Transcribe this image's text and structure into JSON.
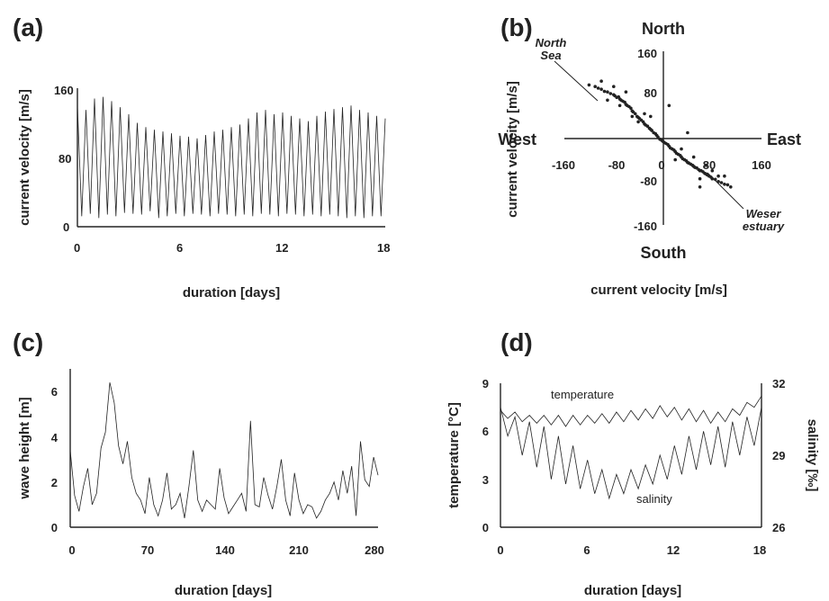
{
  "chart_data": [
    {
      "id": "a",
      "panel_label": "(a)",
      "type": "line",
      "xlabel": "duration [days]",
      "ylabel": "current velocity [m/s]",
      "xlim": [
        0,
        18
      ],
      "ylim": [
        0,
        160
      ],
      "xticks": [
        "0",
        "6",
        "12",
        "18"
      ],
      "yticks": [
        "0",
        "80",
        "160"
      ],
      "series": [
        {
          "x": [
            0.0,
            0.25,
            0.5,
            0.75,
            1.0,
            1.25,
            1.5,
            1.75,
            2.0,
            2.25,
            2.5,
            2.75,
            3.0,
            3.25,
            3.5,
            3.75,
            4.0,
            4.25,
            4.5,
            4.75,
            5.0,
            5.25,
            5.5,
            5.75,
            6.0,
            6.25,
            6.5,
            6.75,
            7.0,
            7.25,
            7.5,
            7.75,
            8.0,
            8.25,
            8.5,
            8.75,
            9.0,
            9.25,
            9.5,
            9.75,
            10.0,
            10.25,
            10.5,
            10.75,
            11.0,
            11.25,
            11.5,
            11.75,
            12.0,
            12.25,
            12.5,
            12.75,
            13.0,
            13.25,
            13.5,
            13.75,
            14.0,
            14.25,
            14.5,
            14.75,
            15.0,
            15.25,
            15.5,
            15.75,
            16.0,
            16.25,
            16.5,
            16.75,
            17.0,
            17.25,
            17.5,
            17.75,
            18.0
          ],
          "values": [
            140,
            12,
            135,
            15,
            148,
            10,
            150,
            14,
            145,
            12,
            138,
            16,
            130,
            15,
            120,
            14,
            115,
            18,
            112,
            10,
            110,
            12,
            108,
            15,
            105,
            12,
            104,
            15,
            102,
            14,
            106,
            12,
            110,
            15,
            112,
            14,
            115,
            12,
            118,
            14,
            125,
            12,
            132,
            15,
            135,
            14,
            130,
            12,
            132,
            15,
            128,
            14,
            125,
            12,
            122,
            14,
            128,
            12,
            133,
            14,
            136,
            12,
            138,
            10,
            140,
            12,
            135,
            10,
            132,
            12,
            128,
            12,
            125
          ]
        }
      ]
    },
    {
      "id": "b",
      "panel_label": "(b)",
      "type": "scatter",
      "xlabel": "current velocity [m/s]",
      "ylabel": "current velocity [m/s]",
      "xlim": [
        -160,
        160
      ],
      "ylim": [
        -160,
        160
      ],
      "xticks": [
        "-160",
        "-80",
        "0",
        "80",
        "160"
      ],
      "yticks": [
        "-160",
        "-80",
        "0",
        "80",
        "160"
      ],
      "compass": {
        "north": "North",
        "south": "South",
        "east": "East",
        "west": "West"
      },
      "annotations": [
        {
          "line1": "North",
          "line2": "Sea"
        },
        {
          "line1": "Weser",
          "line2": "estuary"
        }
      ],
      "series": [
        {
          "x": [
            -120,
            -110,
            -105,
            -100,
            -95,
            -90,
            -85,
            -80,
            -78,
            -75,
            -72,
            -70,
            -68,
            -65,
            -62,
            -60,
            -58,
            -55,
            -52,
            -50,
            -48,
            -45,
            -42,
            -40,
            -38,
            -35,
            -32,
            -30,
            -28,
            -25,
            -22,
            -20,
            -18,
            -15,
            -12,
            -10,
            -8,
            -5,
            -2,
            0,
            2,
            5,
            8,
            10,
            12,
            15,
            18,
            20,
            22,
            25,
            28,
            30,
            32,
            35,
            38,
            40,
            42,
            45,
            48,
            50,
            52,
            55,
            58,
            60,
            62,
            65,
            68,
            70,
            72,
            75,
            78,
            80,
            85,
            90,
            95,
            100,
            105,
            110,
            -90,
            -60,
            -30,
            20,
            50,
            80,
            -100,
            -70,
            -40,
            30,
            60,
            90,
            40,
            -50,
            100,
            -20,
            70,
            -80,
            10,
            60
          ],
          "values": [
            98,
            95,
            92,
            90,
            86,
            85,
            82,
            80,
            78,
            75,
            76,
            72,
            70,
            68,
            66,
            62,
            60,
            58,
            55,
            50,
            48,
            45,
            40,
            38,
            36,
            33,
            30,
            26,
            24,
            22,
            18,
            16,
            14,
            10,
            8,
            5,
            2,
            -2,
            -4,
            -6,
            -8,
            -10,
            -12,
            -15,
            -18,
            -20,
            -22,
            -25,
            -28,
            -30,
            -32,
            -35,
            -38,
            -40,
            -42,
            -45,
            -46,
            -48,
            -50,
            -52,
            -54,
            -55,
            -58,
            -60,
            -60,
            -62,
            -65,
            -66,
            -68,
            -70,
            -72,
            -75,
            -76,
            -80,
            -82,
            -85,
            -86,
            -90,
            70,
            85,
            45,
            -40,
            -35,
            -60,
            105,
            60,
            30,
            -20,
            -75,
            -70,
            10,
            40,
            -70,
            40,
            -50,
            95,
            60,
            -90
          ]
        }
      ]
    },
    {
      "id": "c",
      "panel_label": "(c)",
      "type": "line",
      "xlabel": "duration [days]",
      "ylabel": "wave height [m]",
      "xlim": [
        0,
        280
      ],
      "ylim": [
        0,
        7
      ],
      "xticks": [
        "0",
        "70",
        "140",
        "210",
        "280"
      ],
      "yticks": [
        "0",
        "2",
        "4",
        "6"
      ],
      "series": [
        {
          "x": [
            0,
            4,
            8,
            12,
            16,
            20,
            24,
            28,
            32,
            36,
            40,
            44,
            48,
            52,
            56,
            60,
            64,
            68,
            72,
            76,
            80,
            84,
            88,
            92,
            96,
            100,
            104,
            108,
            112,
            116,
            120,
            124,
            128,
            132,
            136,
            140,
            144,
            148,
            152,
            156,
            160,
            164,
            168,
            172,
            176,
            180,
            184,
            188,
            192,
            196,
            200,
            204,
            208,
            212,
            216,
            220,
            224,
            228,
            232,
            236,
            240,
            244,
            248,
            252,
            256,
            260,
            264,
            268,
            272,
            276,
            280
          ],
          "values": [
            3.4,
            1.4,
            0.7,
            1.8,
            2.6,
            1.0,
            1.5,
            3.5,
            4.2,
            6.4,
            5.5,
            3.6,
            2.8,
            3.8,
            2.2,
            1.5,
            1.2,
            0.6,
            2.2,
            1.0,
            0.5,
            1.2,
            2.4,
            0.8,
            1.0,
            1.5,
            0.4,
            1.8,
            3.4,
            1.2,
            0.7,
            1.2,
            1.0,
            0.8,
            2.6,
            1.3,
            0.6,
            0.9,
            1.2,
            1.5,
            0.7,
            4.7,
            1.0,
            0.9,
            2.2,
            1.4,
            0.8,
            1.8,
            3.0,
            1.2,
            0.5,
            2.4,
            1.2,
            0.6,
            1.0,
            0.9,
            0.4,
            0.7,
            1.2,
            1.5,
            2.0,
            1.2,
            2.5,
            1.5,
            2.7,
            0.5,
            3.8,
            2.1,
            1.8,
            3.1,
            2.3
          ]
        }
      ]
    },
    {
      "id": "d",
      "panel_label": "(d)",
      "type": "line",
      "xlabel": "duration [days]",
      "ylabel": "temperature [°C]",
      "ylabel_right": "salinity [‰]",
      "xlim": [
        0,
        18
      ],
      "ylim": [
        0,
        9
      ],
      "ylim_right": [
        26,
        32
      ],
      "xticks": [
        "0",
        "6",
        "12",
        "18"
      ],
      "yticks": [
        "0",
        "3",
        "6",
        "9"
      ],
      "yticks_right": [
        "26",
        "29",
        "32"
      ],
      "series": [
        {
          "name": "temperature",
          "x": [
            0.0,
            0.5,
            1.0,
            1.5,
            2.0,
            2.5,
            3.0,
            3.5,
            4.0,
            4.5,
            5.0,
            5.5,
            6.0,
            6.5,
            7.0,
            7.5,
            8.0,
            8.5,
            9.0,
            9.5,
            10.0,
            10.5,
            11.0,
            11.5,
            12.0,
            12.5,
            13.0,
            13.5,
            14.0,
            14.5,
            15.0,
            15.5,
            16.0,
            16.5,
            17.0,
            17.5,
            18.0
          ],
          "values": [
            7.3,
            6.8,
            7.2,
            6.6,
            7.0,
            6.5,
            7.0,
            6.4,
            7.0,
            6.3,
            7.0,
            6.4,
            7.0,
            6.5,
            7.1,
            6.5,
            7.2,
            6.6,
            7.3,
            6.7,
            7.4,
            6.8,
            7.6,
            6.9,
            7.5,
            6.7,
            7.4,
            6.6,
            7.3,
            6.5,
            7.2,
            6.6,
            7.4,
            7.0,
            7.8,
            7.5,
            8.2
          ]
        },
        {
          "name": "salinity",
          "x": [
            0.0,
            0.5,
            1.0,
            1.5,
            2.0,
            2.5,
            3.0,
            3.5,
            4.0,
            4.5,
            5.0,
            5.5,
            6.0,
            6.5,
            7.0,
            7.5,
            8.0,
            8.5,
            9.0,
            9.5,
            10.0,
            10.5,
            11.0,
            11.5,
            12.0,
            12.5,
            13.0,
            13.5,
            14.0,
            14.5,
            15.0,
            15.5,
            16.0,
            16.5,
            17.0,
            17.5,
            18.0
          ],
          "values": [
            31.0,
            29.8,
            30.6,
            29.0,
            30.4,
            28.5,
            30.2,
            28.0,
            29.8,
            27.8,
            29.4,
            27.6,
            28.8,
            27.4,
            28.4,
            27.2,
            28.2,
            27.4,
            28.4,
            27.6,
            28.6,
            27.8,
            29.0,
            28.0,
            29.4,
            28.2,
            29.8,
            28.4,
            30.0,
            28.6,
            30.2,
            28.5,
            30.4,
            29.0,
            30.6,
            29.4,
            31.0
          ]
        }
      ]
    }
  ]
}
